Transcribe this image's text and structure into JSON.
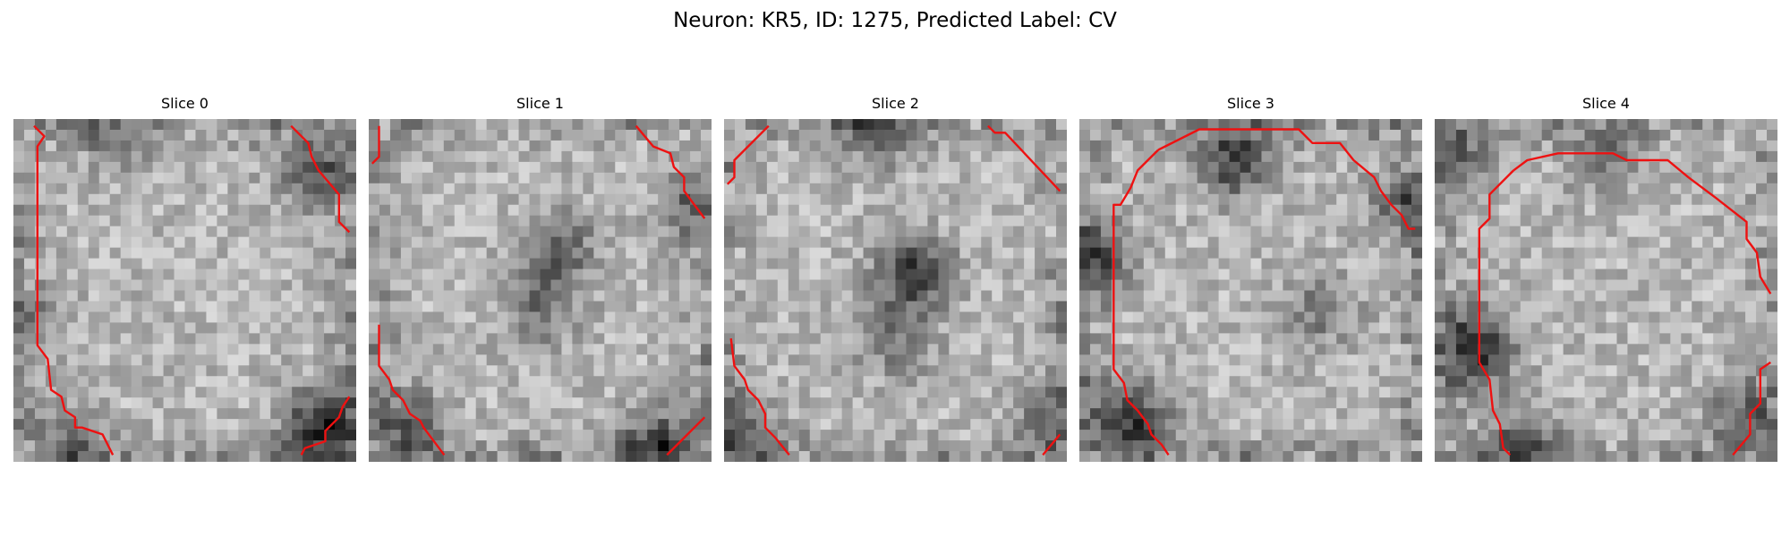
{
  "figure": {
    "title": "Neuron: KR5, ID: 1275, Predicted Label: CV"
  },
  "panels": [
    {
      "title": "Slice 0",
      "dark_spots": [
        [
          0.9,
          0.9,
          0.55
        ],
        [
          0.88,
          0.15,
          0.35
        ],
        [
          0.3,
          0.05,
          0.2
        ],
        [
          0.05,
          0.6,
          0.2
        ],
        [
          0.15,
          0.95,
          0.25
        ]
      ],
      "contours": [
        [
          [
            0.06,
            0.02
          ],
          [
            0.09,
            0.05
          ],
          [
            0.07,
            0.08
          ],
          [
            0.07,
            0.66
          ],
          [
            0.1,
            0.7
          ],
          [
            0.11,
            0.79
          ],
          [
            0.14,
            0.81
          ],
          [
            0.15,
            0.85
          ],
          [
            0.18,
            0.87
          ],
          [
            0.18,
            0.9
          ],
          [
            0.2,
            0.9
          ],
          [
            0.26,
            0.92
          ],
          [
            0.29,
            0.98
          ]
        ],
        [
          [
            0.81,
            0.02
          ],
          [
            0.86,
            0.07
          ],
          [
            0.87,
            0.11
          ],
          [
            0.89,
            0.15
          ],
          [
            0.95,
            0.22
          ],
          [
            0.95,
            0.3
          ],
          [
            0.98,
            0.33
          ]
        ],
        [
          [
            0.98,
            0.81
          ],
          [
            0.96,
            0.84
          ],
          [
            0.95,
            0.87
          ],
          [
            0.91,
            0.91
          ],
          [
            0.91,
            0.94
          ],
          [
            0.85,
            0.96
          ],
          [
            0.84,
            0.98
          ]
        ]
      ]
    },
    {
      "title": "Slice 1",
      "dark_spots": [
        [
          0.55,
          0.38,
          0.35
        ],
        [
          0.5,
          0.55,
          0.25
        ],
        [
          0.85,
          0.96,
          0.45
        ],
        [
          0.12,
          0.9,
          0.35
        ],
        [
          0.95,
          0.25,
          0.25
        ]
      ],
      "contours": [
        [
          [
            0.03,
            0.02
          ],
          [
            0.03,
            0.11
          ],
          [
            0.01,
            0.13
          ]
        ],
        [
          [
            0.78,
            0.02
          ],
          [
            0.83,
            0.08
          ],
          [
            0.88,
            0.1
          ],
          [
            0.89,
            0.14
          ],
          [
            0.92,
            0.17
          ],
          [
            0.92,
            0.21
          ],
          [
            0.95,
            0.25
          ],
          [
            0.98,
            0.29
          ]
        ],
        [
          [
            0.03,
            0.6
          ],
          [
            0.03,
            0.72
          ],
          [
            0.06,
            0.76
          ],
          [
            0.07,
            0.79
          ],
          [
            0.1,
            0.82
          ],
          [
            0.12,
            0.86
          ],
          [
            0.15,
            0.88
          ],
          [
            0.16,
            0.9
          ],
          [
            0.22,
            0.98
          ]
        ],
        [
          [
            0.98,
            0.87
          ],
          [
            0.87,
            0.98
          ]
        ]
      ]
    },
    {
      "title": "Slice 2",
      "dark_spots": [
        [
          0.55,
          0.45,
          0.5
        ],
        [
          0.5,
          0.65,
          0.25
        ],
        [
          0.45,
          0.02,
          0.35
        ],
        [
          0.05,
          0.9,
          0.3
        ],
        [
          0.95,
          0.9,
          0.25
        ]
      ],
      "contours": [
        [
          [
            0.13,
            0.02
          ],
          [
            0.03,
            0.12
          ],
          [
            0.03,
            0.17
          ],
          [
            0.01,
            0.19
          ]
        ],
        [
          [
            0.77,
            0.02
          ],
          [
            0.79,
            0.04
          ],
          [
            0.82,
            0.04
          ],
          [
            0.98,
            0.21
          ]
        ],
        [
          [
            0.02,
            0.64
          ],
          [
            0.03,
            0.72
          ],
          [
            0.06,
            0.76
          ],
          [
            0.07,
            0.79
          ],
          [
            0.1,
            0.82
          ],
          [
            0.12,
            0.86
          ],
          [
            0.12,
            0.9
          ],
          [
            0.15,
            0.93
          ],
          [
            0.19,
            0.98
          ]
        ],
        [
          [
            0.98,
            0.92
          ],
          [
            0.93,
            0.98
          ]
        ]
      ]
    },
    {
      "title": "Slice 3",
      "dark_spots": [
        [
          0.45,
          0.12,
          0.45
        ],
        [
          0.05,
          0.4,
          0.4
        ],
        [
          0.15,
          0.88,
          0.5
        ],
        [
          0.7,
          0.55,
          0.25
        ],
        [
          0.95,
          0.25,
          0.3
        ]
      ],
      "contours": [
        [
          [
            0.23,
            0.09
          ],
          [
            0.35,
            0.03
          ],
          [
            0.64,
            0.03
          ],
          [
            0.68,
            0.07
          ],
          [
            0.76,
            0.07
          ],
          [
            0.8,
            0.12
          ],
          [
            0.86,
            0.17
          ],
          [
            0.88,
            0.21
          ],
          [
            0.91,
            0.25
          ],
          [
            0.94,
            0.28
          ],
          [
            0.96,
            0.32
          ],
          [
            0.98,
            0.32
          ]
        ],
        [
          [
            0.23,
            0.09
          ],
          [
            0.17,
            0.15
          ],
          [
            0.15,
            0.2
          ],
          [
            0.12,
            0.25
          ],
          [
            0.1,
            0.25
          ],
          [
            0.1,
            0.73
          ],
          [
            0.13,
            0.77
          ],
          [
            0.14,
            0.82
          ],
          [
            0.17,
            0.85
          ],
          [
            0.2,
            0.89
          ],
          [
            0.21,
            0.92
          ],
          [
            0.24,
            0.95
          ],
          [
            0.26,
            0.98
          ]
        ]
      ]
    },
    {
      "title": "Slice 4",
      "dark_spots": [
        [
          0.12,
          0.67,
          0.55
        ],
        [
          0.25,
          0.95,
          0.35
        ],
        [
          0.9,
          0.88,
          0.3
        ],
        [
          0.5,
          0.1,
          0.3
        ],
        [
          0.05,
          0.1,
          0.3
        ]
      ],
      "contours": [
        [
          [
            0.23,
            0.15
          ],
          [
            0.27,
            0.12
          ],
          [
            0.36,
            0.1
          ],
          [
            0.52,
            0.1
          ],
          [
            0.56,
            0.12
          ],
          [
            0.68,
            0.12
          ],
          [
            0.74,
            0.17
          ],
          [
            0.82,
            0.23
          ],
          [
            0.91,
            0.3
          ],
          [
            0.91,
            0.35
          ],
          [
            0.94,
            0.39
          ],
          [
            0.95,
            0.46
          ],
          [
            0.98,
            0.51
          ]
        ],
        [
          [
            0.23,
            0.15
          ],
          [
            0.16,
            0.22
          ],
          [
            0.16,
            0.29
          ],
          [
            0.13,
            0.32
          ],
          [
            0.13,
            0.71
          ],
          [
            0.16,
            0.76
          ],
          [
            0.17,
            0.85
          ],
          [
            0.19,
            0.89
          ],
          [
            0.2,
            0.96
          ],
          [
            0.22,
            0.98
          ]
        ],
        [
          [
            0.98,
            0.71
          ],
          [
            0.95,
            0.73
          ],
          [
            0.95,
            0.83
          ],
          [
            0.92,
            0.86
          ],
          [
            0.92,
            0.92
          ],
          [
            0.87,
            0.98
          ]
        ]
      ]
    }
  ]
}
